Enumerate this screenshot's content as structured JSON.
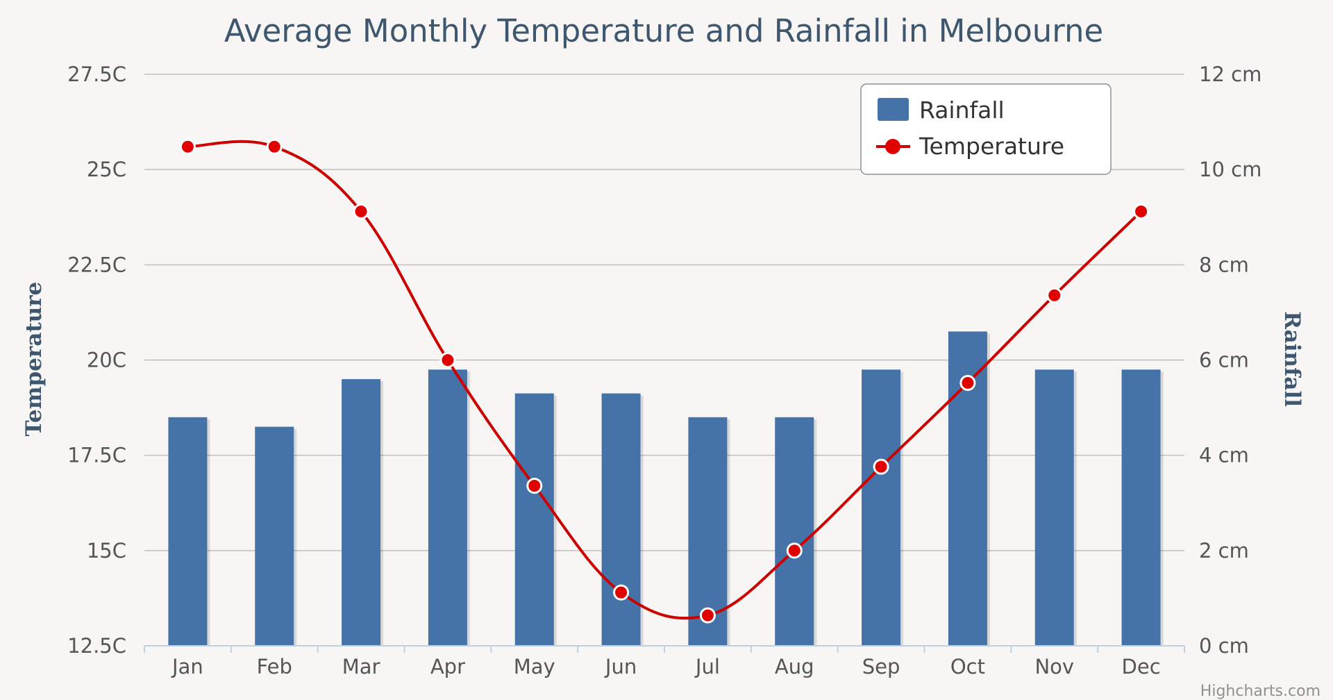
{
  "chart_data": {
    "type": "bar+line",
    "title": "Average Monthly Temperature and Rainfall in Melbourne",
    "categories": [
      "Jan",
      "Feb",
      "Mar",
      "Apr",
      "May",
      "Jun",
      "Jul",
      "Aug",
      "Sep",
      "Oct",
      "Nov",
      "Dec"
    ],
    "series": [
      {
        "name": "Rainfall",
        "type": "bar",
        "axis": "right",
        "unit": "cm",
        "color": "#4572a7",
        "values": [
          4.8,
          4.6,
          5.6,
          5.8,
          5.3,
          5.3,
          4.8,
          4.8,
          5.8,
          6.6,
          5.8,
          5.8
        ]
      },
      {
        "name": "Temperature",
        "type": "line",
        "axis": "left",
        "unit": "C",
        "color": "#cc0000",
        "values": [
          25.6,
          25.6,
          23.9,
          20.0,
          16.7,
          13.9,
          13.3,
          15.0,
          17.2,
          19.4,
          21.7,
          23.9
        ]
      }
    ],
    "y_left": {
      "title": "Temperature",
      "min": 12.5,
      "max": 27.5,
      "ticks": [
        "27.5C",
        "25C",
        "22.5C",
        "20C",
        "17.5C",
        "15C",
        "12.5C"
      ]
    },
    "y_right": {
      "title": "Rainfall",
      "min": 0,
      "max": 12,
      "ticks": [
        "12 cm",
        "10 cm",
        "8 cm",
        "6 cm",
        "4 cm",
        "2 cm",
        "0 cm"
      ]
    },
    "legend": {
      "position": "top-right",
      "items": [
        "Rainfall",
        "Temperature"
      ]
    },
    "credits": "Highcharts.com",
    "grid": true
  }
}
